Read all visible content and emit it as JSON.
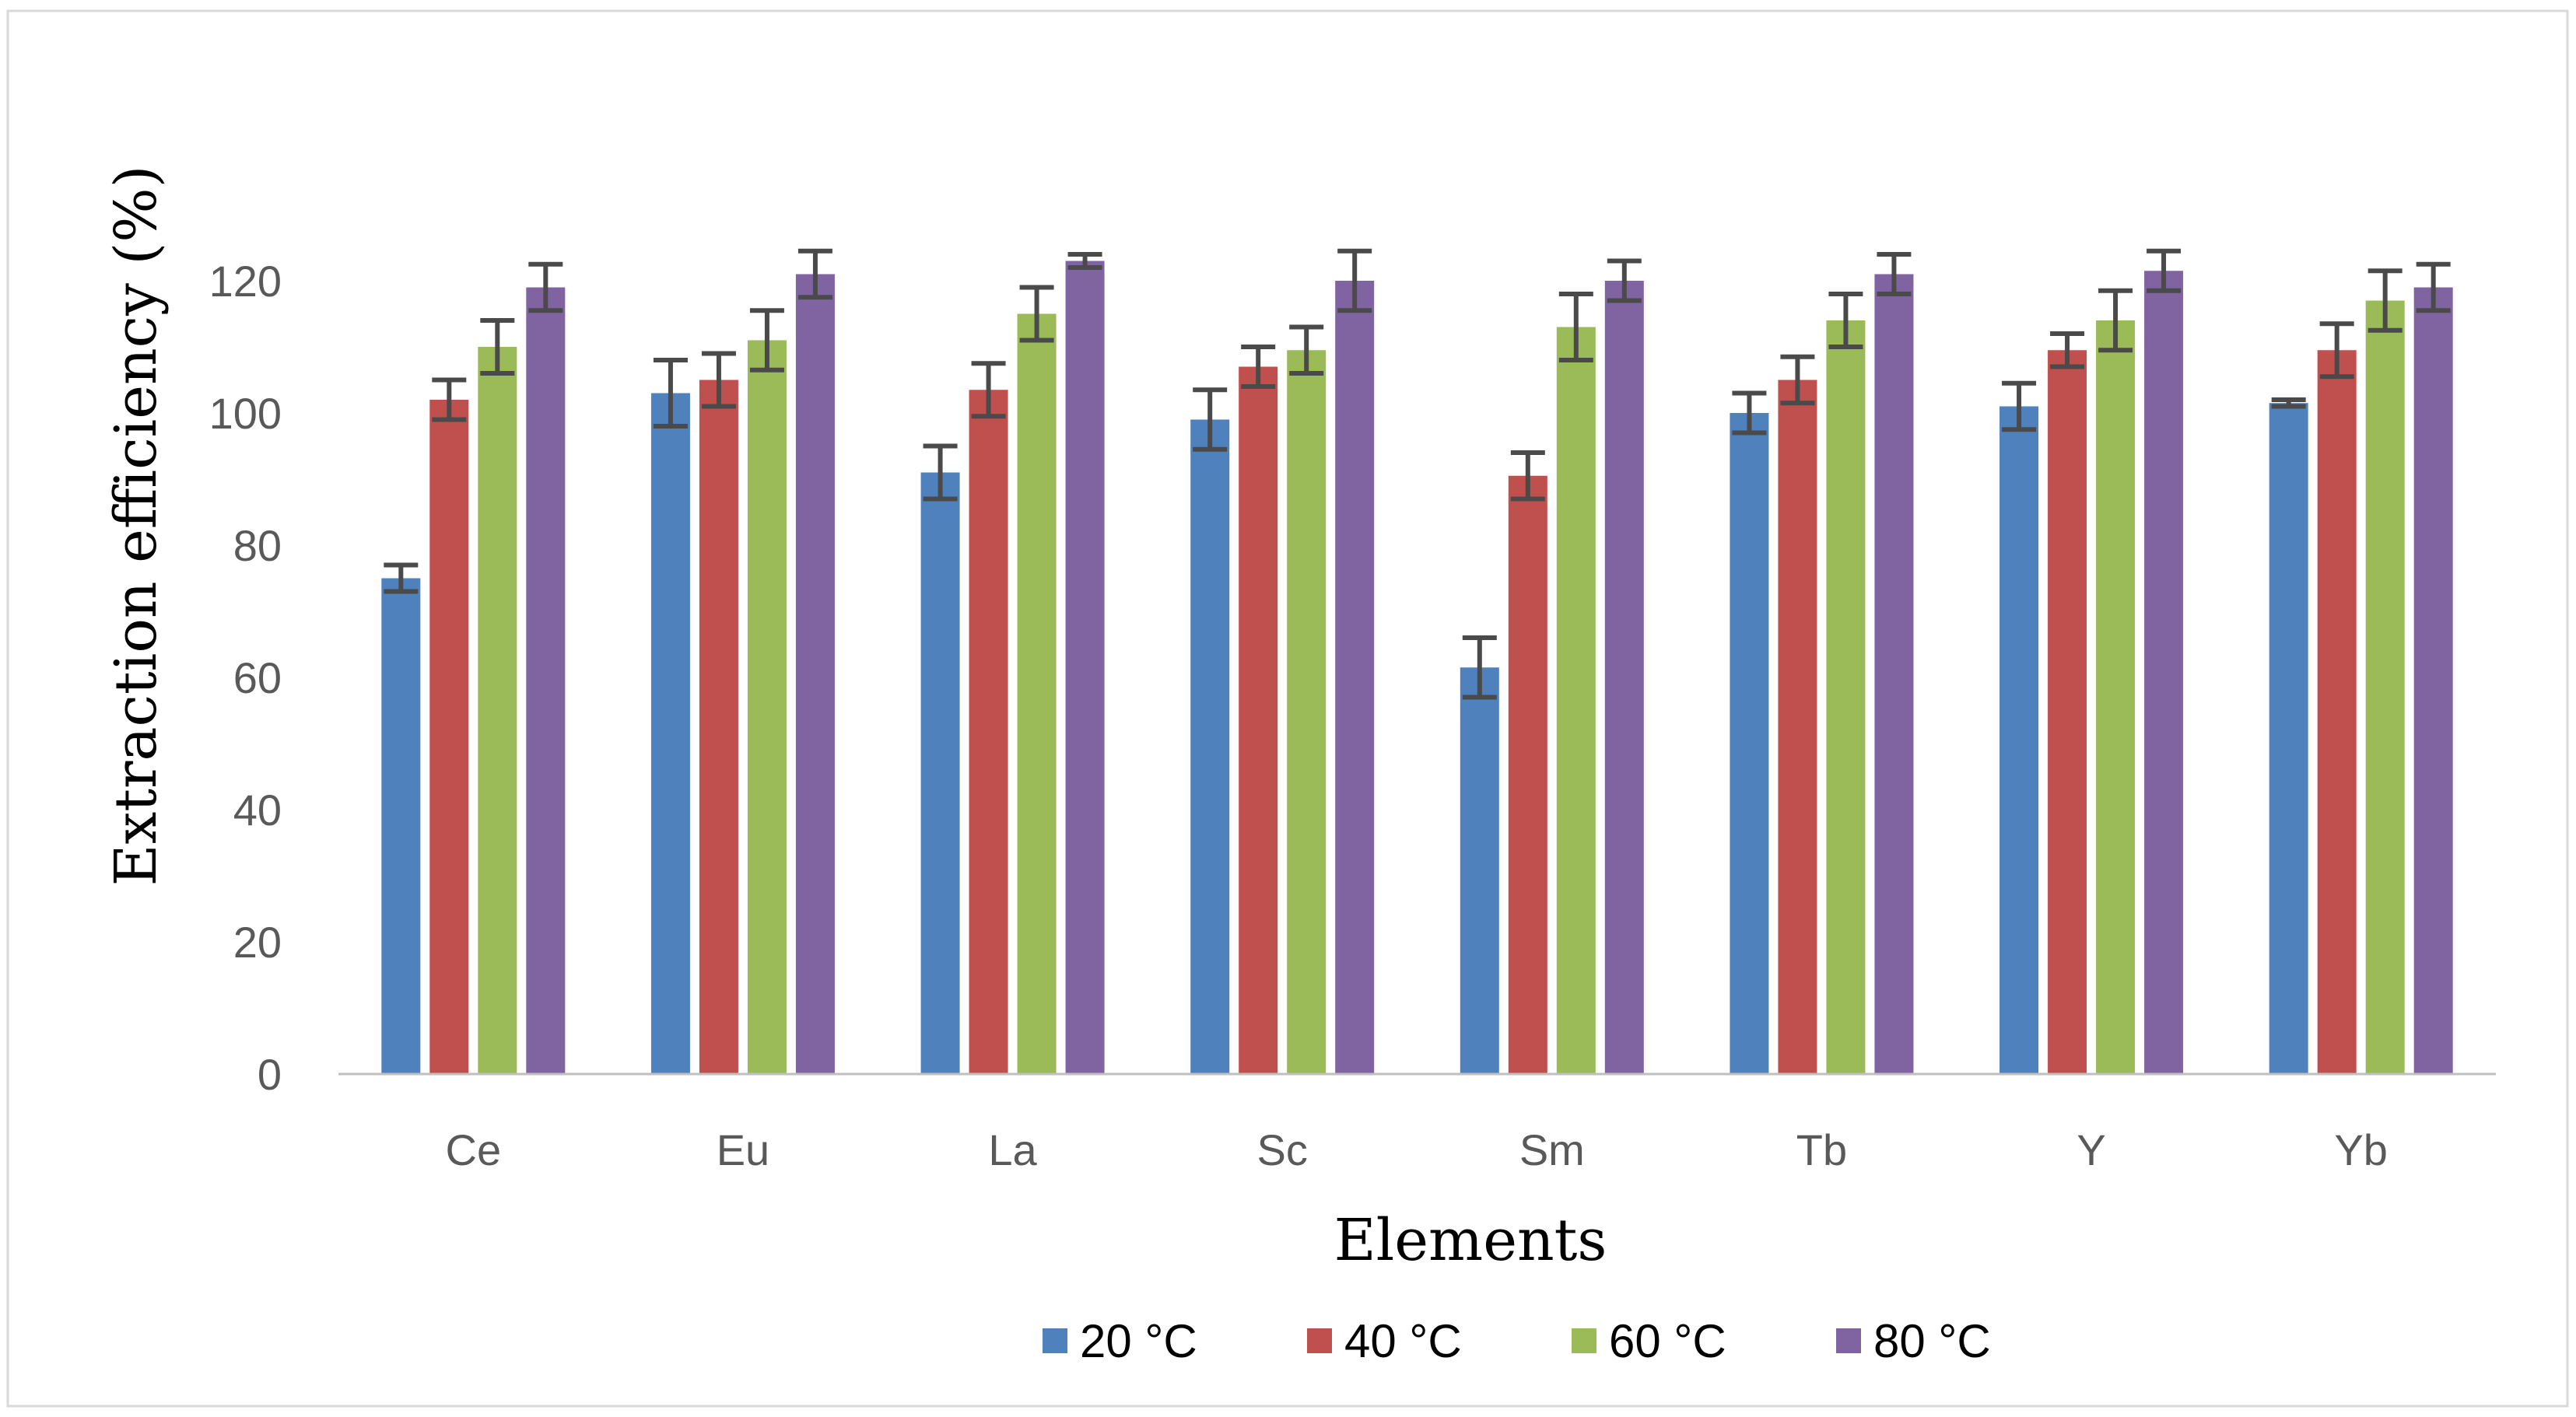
{
  "chart_data": {
    "type": "bar",
    "title": "",
    "xlabel": "Elements",
    "ylabel": "Extraction efficiency (%)",
    "ylim": [
      0,
      120
    ],
    "yticks": [
      0,
      20,
      40,
      60,
      80,
      100,
      120
    ],
    "grid": false,
    "legend_position": "bottom",
    "categories": [
      "Ce",
      "Eu",
      "La",
      "Sc",
      "Sm",
      "Tb",
      "Y",
      "Yb"
    ],
    "series": [
      {
        "name": "20 °C",
        "color": "#4f81bd",
        "values": [
          75,
          103,
          91,
          99,
          61.5,
          100,
          101,
          101.5
        ],
        "errors": [
          2,
          5,
          4,
          4.5,
          4.5,
          3,
          3.5,
          0.5
        ]
      },
      {
        "name": "40 °C",
        "color": "#c0504d",
        "values": [
          102,
          105,
          103.5,
          107,
          90.5,
          105,
          109.5,
          109.5
        ],
        "errors": [
          3,
          4,
          4,
          3,
          3.5,
          3.5,
          2.5,
          4
        ]
      },
      {
        "name": "60 °C",
        "color": "#9bbb59",
        "values": [
          110,
          111,
          115,
          109.5,
          113,
          114,
          114,
          117
        ],
        "errors": [
          4,
          4.5,
          4,
          3.5,
          5,
          4,
          4.5,
          4.5
        ]
      },
      {
        "name": "80 °C",
        "color": "#8064a2",
        "values": [
          119,
          121,
          123,
          120,
          120,
          121,
          121.5,
          119
        ],
        "errors": [
          3.5,
          3.5,
          1,
          4.5,
          3,
          3,
          3,
          3.5
        ]
      }
    ]
  }
}
